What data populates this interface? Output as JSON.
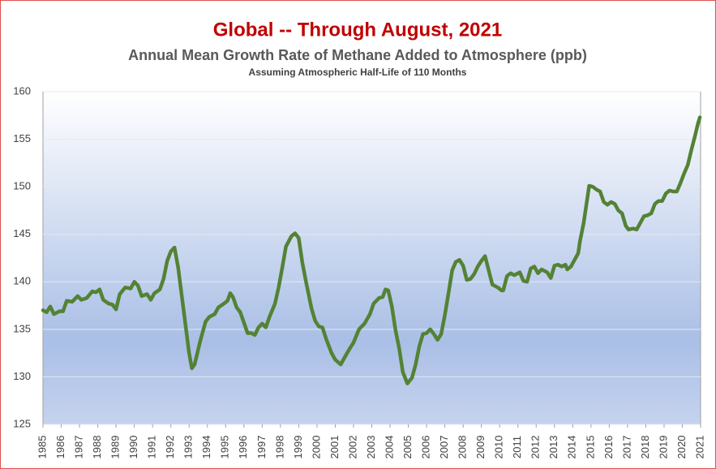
{
  "chart_data": {
    "type": "line",
    "title": "Global -- Through August, 2021",
    "subtitle": "Annual Mean Growth Rate of Methane Added to Atmosphere (ppb)",
    "note": "Assuming Atmospheric Half-Life of 110 Months",
    "color": "#548235",
    "grid": true,
    "xlim": [
      1985,
      2021
    ],
    "ylim": [
      125,
      160
    ],
    "yticks": [
      125,
      130,
      135,
      140,
      145,
      150,
      155,
      160
    ],
    "xticks": [
      1985,
      1986,
      1987,
      1988,
      1989,
      1990,
      1991,
      1992,
      1993,
      1994,
      1995,
      1996,
      1997,
      1998,
      1999,
      2000,
      2001,
      2002,
      2003,
      2004,
      2005,
      2006,
      2007,
      2008,
      2009,
      2010,
      2011,
      2012,
      2013,
      2014,
      2015,
      2016,
      2017,
      2018,
      2019,
      2020,
      2021
    ],
    "x": [
      1985.0,
      1985.2,
      1985.4,
      1985.6,
      1985.9,
      1986.1,
      1986.3,
      1986.6,
      1986.9,
      1987.1,
      1987.4,
      1987.7,
      1987.9,
      1988.1,
      1988.3,
      1988.6,
      1988.8,
      1989.0,
      1989.2,
      1989.5,
      1989.8,
      1990.0,
      1990.2,
      1990.4,
      1990.7,
      1990.9,
      1991.1,
      1991.4,
      1991.6,
      1991.8,
      1992.0,
      1992.2,
      1992.4,
      1992.6,
      1992.8,
      1993.0,
      1993.15,
      1993.3,
      1993.6,
      1993.9,
      1994.1,
      1994.4,
      1994.6,
      1994.9,
      1995.1,
      1995.25,
      1995.4,
      1995.6,
      1995.8,
      1996.0,
      1996.2,
      1996.4,
      1996.6,
      1996.8,
      1997.0,
      1997.2,
      1997.4,
      1997.7,
      1997.9,
      1998.1,
      1998.3,
      1998.6,
      1998.8,
      1999.0,
      1999.2,
      1999.4,
      1999.7,
      1999.9,
      2000.1,
      2000.3,
      2000.5,
      2000.8,
      2001.0,
      2001.3,
      2001.5,
      2001.8,
      2002.0,
      2002.3,
      2002.6,
      2002.9,
      2003.1,
      2003.4,
      2003.6,
      2003.75,
      2003.9,
      2004.1,
      2004.3,
      2004.5,
      2004.7,
      2004.95,
      2005.2,
      2005.4,
      2005.6,
      2005.8,
      2006.0,
      2006.2,
      2006.4,
      2006.6,
      2006.8,
      2007.0,
      2007.2,
      2007.4,
      2007.6,
      2007.8,
      2008.0,
      2008.2,
      2008.4,
      2008.6,
      2008.8,
      2009.0,
      2009.2,
      2009.4,
      2009.6,
      2009.9,
      2010.1,
      2010.2,
      2010.4,
      2010.6,
      2010.8,
      2011.1,
      2011.3,
      2011.5,
      2011.7,
      2011.9,
      2012.1,
      2012.3,
      2012.6,
      2012.8,
      2013.0,
      2013.2,
      2013.4,
      2013.6,
      2013.7,
      2013.9,
      2014.1,
      2014.3,
      2014.4,
      2014.6,
      2014.8,
      2014.9,
      2015.1,
      2015.3,
      2015.5,
      2015.7,
      2015.9,
      2016.1,
      2016.3,
      2016.5,
      2016.7,
      2016.9,
      2017.05,
      2017.3,
      2017.5,
      2017.7,
      2017.9,
      2018.1,
      2018.3,
      2018.5,
      2018.7,
      2018.9,
      2019.1,
      2019.3,
      2019.5,
      2019.7,
      2019.9,
      2020.1,
      2020.3,
      2020.5,
      2020.7,
      2020.85,
      2020.96
    ],
    "values": [
      137.0,
      136.8,
      137.4,
      136.6,
      136.9,
      136.9,
      138.0,
      137.9,
      138.5,
      138.1,
      138.3,
      139.0,
      138.9,
      139.2,
      138.1,
      137.7,
      137.6,
      137.1,
      138.7,
      139.4,
      139.3,
      140.0,
      139.6,
      138.5,
      138.7,
      138.1,
      138.8,
      139.2,
      140.3,
      142.2,
      143.2,
      143.6,
      141.5,
      138.5,
      135.5,
      132.5,
      130.9,
      131.3,
      133.7,
      135.8,
      136.3,
      136.6,
      137.3,
      137.7,
      138.0,
      138.8,
      138.4,
      137.3,
      136.8,
      135.7,
      134.6,
      134.6,
      134.4,
      135.2,
      135.6,
      135.2,
      136.3,
      137.7,
      139.4,
      141.5,
      143.7,
      144.8,
      145.1,
      144.6,
      142.0,
      140.0,
      137.2,
      135.9,
      135.3,
      135.2,
      134.0,
      132.5,
      131.8,
      131.3,
      132.0,
      133.0,
      133.6,
      135.0,
      135.6,
      136.6,
      137.7,
      138.3,
      138.4,
      139.2,
      139.1,
      137.4,
      134.9,
      133.0,
      130.5,
      129.3,
      129.9,
      131.3,
      133.2,
      134.5,
      134.6,
      135.0,
      134.5,
      133.9,
      134.5,
      136.5,
      138.8,
      141.2,
      142.1,
      142.3,
      141.7,
      140.2,
      140.3,
      140.8,
      141.6,
      142.2,
      142.7,
      141.2,
      139.7,
      139.4,
      139.1,
      139.1,
      140.6,
      140.9,
      140.7,
      141.0,
      140.1,
      140.0,
      141.4,
      141.6,
      140.9,
      141.3,
      141.0,
      140.4,
      141.7,
      141.8,
      141.6,
      141.8,
      141.3,
      141.6,
      142.3,
      143.0,
      144.3,
      146.2,
      148.8,
      150.1,
      150.0,
      149.7,
      149.5,
      148.4,
      148.1,
      148.4,
      148.2,
      147.5,
      147.2,
      145.9,
      145.5,
      145.6,
      145.5,
      146.2,
      146.9,
      147.0,
      147.2,
      148.2,
      148.5,
      148.5,
      149.3,
      149.6,
      149.5,
      149.5,
      150.4,
      151.4,
      152.3,
      153.9,
      155.4,
      156.6,
      157.3
    ]
  }
}
